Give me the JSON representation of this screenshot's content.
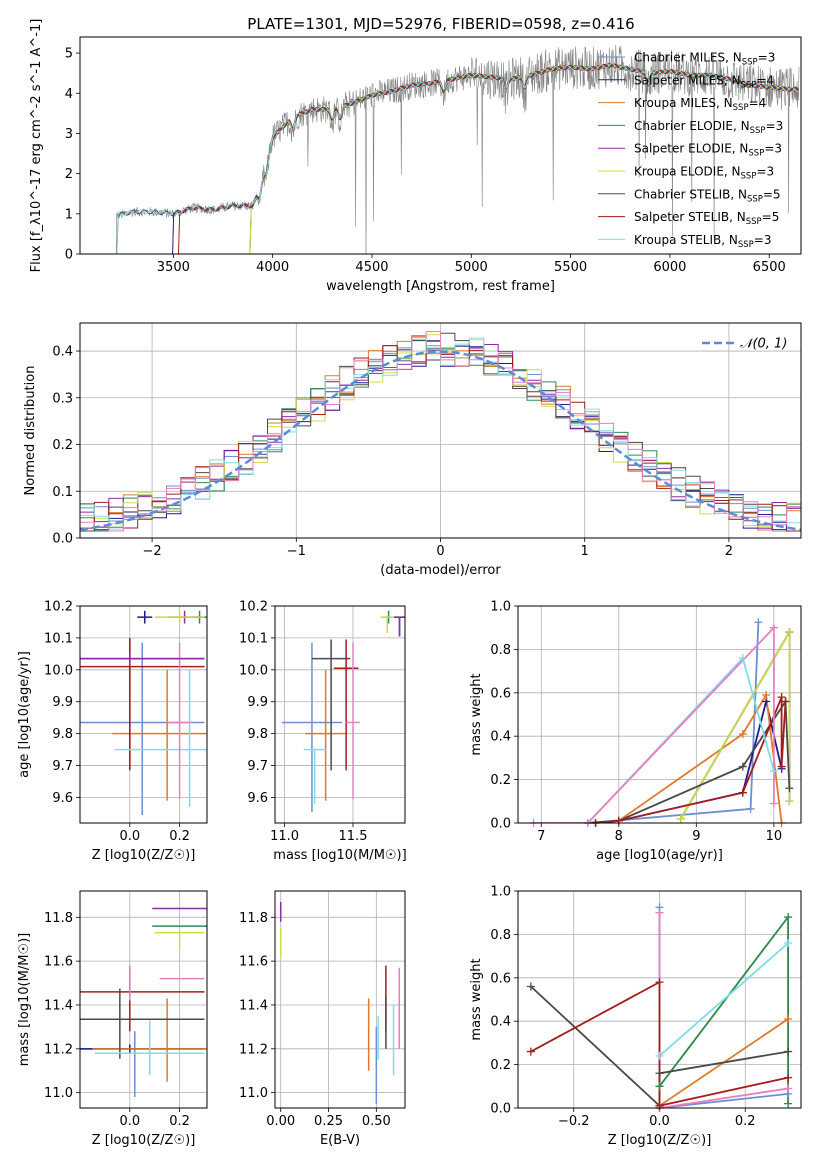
{
  "figure": {
    "title": "PLATE=1301, MJD=52976, FIBERID=0598, z=0.416"
  },
  "colors": {
    "chabrier_miles": "#6b8fd6",
    "salpeter_miles": "#1c1c8c",
    "kroupa_miles": "#e0792a",
    "chabrier_elodie": "#2e8b57",
    "salpeter_elodie": "#8e2ca8",
    "kroupa_elodie": "#cfdd42",
    "chabrier_stelib": "#4a4a4a",
    "salpeter_stelib": "#a61c1c",
    "kroupa_stelib": "#80dde6",
    "pink": "#e87fbf",
    "spectrum": "#808080",
    "normal": "#5b8bd9"
  },
  "chart_data": [
    {
      "id": "spectrum",
      "type": "line",
      "xlabel": "wavelength [Angstrom, rest frame]",
      "ylabel": "Flux [f_λ10^-17 erg cm^-2 s^-1 A^-1]",
      "xlim": [
        3030,
        6660
      ],
      "ylim": [
        0,
        5.4
      ],
      "xticks": [
        3500,
        4000,
        4500,
        5000,
        5500,
        6000,
        6500
      ],
      "yticks": [
        0,
        1,
        2,
        3,
        4,
        5
      ],
      "legend": [
        "Chabrier MILES, N_SSP=3",
        "Salpeter MILES, N_SSP=4",
        "Kroupa MILES, N_SSP=4",
        "Chabrier ELODIE, N_SSP=3",
        "Salpeter ELODIE, N_SSP=3",
        "Kroupa ELODIE, N_SSP=3",
        "Chabrier STELIB, N_SSP=5",
        "Salpeter STELIB, N_SSP=5",
        "Kroupa STELIB, N_SSP=3"
      ],
      "legend_loc": "upper-right",
      "model_start": [
        3500,
        3500,
        3530,
        3890,
        3890,
        3890,
        3220,
        3530,
        3220
      ],
      "continuum": [
        [
          3210,
          0.95
        ],
        [
          3300,
          1.05
        ],
        [
          3400,
          1.05
        ],
        [
          3500,
          1.0
        ],
        [
          3600,
          1.15
        ],
        [
          3700,
          1.1
        ],
        [
          3800,
          1.2
        ],
        [
          3900,
          1.2
        ],
        [
          3950,
          1.9
        ],
        [
          4000,
          2.9
        ],
        [
          4100,
          3.4
        ],
        [
          4200,
          3.6
        ],
        [
          4300,
          3.6
        ],
        [
          4400,
          3.75
        ],
        [
          4500,
          3.95
        ],
        [
          4600,
          4.05
        ],
        [
          4700,
          4.2
        ],
        [
          4800,
          4.25
        ],
        [
          4900,
          4.35
        ],
        [
          5000,
          4.45
        ],
        [
          5100,
          4.4
        ],
        [
          5200,
          4.35
        ],
        [
          5300,
          4.45
        ],
        [
          5400,
          4.6
        ],
        [
          5500,
          4.65
        ],
        [
          5600,
          4.6
        ],
        [
          5700,
          4.7
        ],
        [
          5800,
          4.6
        ],
        [
          5900,
          4.5
        ],
        [
          6000,
          4.55
        ],
        [
          6100,
          4.45
        ],
        [
          6200,
          4.45
        ],
        [
          6300,
          4.35
        ],
        [
          6400,
          4.2
        ],
        [
          6500,
          4.15
        ],
        [
          6600,
          4.1
        ]
      ]
    },
    {
      "id": "residuals",
      "type": "bar",
      "xlabel": "(data-model)/error",
      "ylabel": "Normed distribution",
      "xlim": [
        -2.5,
        2.5
      ],
      "ylim": [
        0,
        0.46
      ],
      "xticks": [
        -2,
        -1,
        0,
        1,
        2
      ],
      "yticks": [
        0.0,
        0.1,
        0.2,
        0.3,
        0.4
      ],
      "legend": [
        "𝒩(0, 1)"
      ],
      "legend_loc": "upper-right",
      "bin_width": 0.1,
      "normal": {
        "mu": 0,
        "sigma": 1
      }
    },
    {
      "id": "age_vs_Z",
      "type": "scatter",
      "xlabel": "Z [log10(Z/Z☉)]",
      "ylabel": "age  [log10(age/yr)]",
      "xlim": [
        -0.2,
        0.31
      ],
      "ylim": [
        9.52,
        10.2
      ],
      "xticks": [
        0.0,
        0.2
      ],
      "yticks": [
        9.6,
        9.7,
        9.8,
        9.9,
        10.0,
        10.1,
        10.2
      ],
      "points": [
        {
          "model": "chabrier_miles",
          "x": 0.05,
          "y": 9.835,
          "xerr": 0.25,
          "yerr": [
            0.29,
            0.25
          ]
        },
        {
          "model": "salpeter_miles",
          "x": 0.06,
          "y": 10.165,
          "xerr": 0.03,
          "yerr": [
            0.02,
            0.02
          ]
        },
        {
          "model": "kroupa_miles",
          "x": 0.15,
          "y": 9.8,
          "xerr": 0.22,
          "yerr": [
            0.21,
            0.2
          ]
        },
        {
          "model": "chabrier_elodie",
          "x": 0.28,
          "y": 10.165,
          "xerr": 0.03,
          "yerr": [
            0.02,
            0.02
          ]
        },
        {
          "model": "salpeter_elodie",
          "x": 0.22,
          "y": 10.165,
          "xerr": 0.07,
          "yerr": [
            0.02,
            0.02
          ]
        },
        {
          "model": "kroupa_elodie",
          "x": 0.2,
          "y": 10.165,
          "xerr": 0.1,
          "yerr": [
            0.02,
            0.02
          ]
        },
        {
          "model": "chabrier_stelib",
          "x": 0.0,
          "y": 10.035,
          "xerr": 0.3,
          "yerr": [
            0.35,
            0.06
          ]
        },
        {
          "model": "salpeter_stelib",
          "x": 0.0,
          "y": 10.01,
          "xerr": 0.3,
          "yerr": [
            0.32,
            0.09
          ]
        },
        {
          "model": "kroupa_stelib",
          "x": 0.24,
          "y": 9.75,
          "xerr": 0.3,
          "yerr": [
            0.18,
            0.25
          ]
        },
        {
          "model": "pink",
          "x": 0.2,
          "y": 9.835,
          "xerr": 0.05,
          "yerr": [
            0.24,
            0.25
          ]
        },
        {
          "model": "salpeter_elodie",
          "x": 0.0,
          "y": 10.035,
          "xerr": 0.3,
          "yerr": [
            0.02,
            0.02
          ]
        }
      ]
    },
    {
      "id": "age_vs_mass",
      "type": "scatter",
      "xlabel": "mass [log10(M/M☉)]",
      "ylabel": "",
      "xlim": [
        10.93,
        11.88
      ],
      "ylim": [
        9.52,
        10.2
      ],
      "xticks": [
        11.0,
        11.5
      ],
      "yticks": [
        9.6,
        9.7,
        9.8,
        9.9,
        10.0,
        10.1,
        10.2
      ],
      "points": [
        {
          "model": "chabrier_miles",
          "x": 11.2,
          "y": 9.835,
          "xerr": 0.22,
          "yerr": [
            0.28,
            0.25
          ]
        },
        {
          "model": "salpeter_miles",
          "x": 11.84,
          "y": 10.165,
          "xerr": 0.04,
          "yerr": [
            0.06,
            0.0
          ]
        },
        {
          "model": "kroupa_miles",
          "x": 11.3,
          "y": 9.8,
          "xerr": 0.15,
          "yerr": [
            0.21,
            0.2
          ]
        },
        {
          "model": "chabrier_elodie",
          "x": 11.76,
          "y": 10.165,
          "xerr": 0.03,
          "yerr": [
            0.02,
            0.02
          ]
        },
        {
          "model": "salpeter_elodie",
          "x": 11.84,
          "y": 10.165,
          "xerr": 0.04,
          "yerr": [
            0.06,
            0.0
          ]
        },
        {
          "model": "kroupa_elodie",
          "x": 11.75,
          "y": 10.165,
          "xerr": 0.05,
          "yerr": [
            0.05,
            0.0
          ]
        },
        {
          "model": "chabrier_stelib",
          "x": 11.34,
          "y": 10.035,
          "xerr": 0.14,
          "yerr": [
            0.35,
            0.06
          ]
        },
        {
          "model": "salpeter_stelib",
          "x": 11.45,
          "y": 10.005,
          "xerr": 0.09,
          "yerr": [
            0.32,
            0.09
          ]
        },
        {
          "model": "kroupa_stelib",
          "x": 11.22,
          "y": 9.75,
          "xerr": 0.08,
          "yerr": [
            0.17,
            0.0
          ]
        },
        {
          "model": "pink",
          "x": 11.5,
          "y": 9.835,
          "xerr": 0.05,
          "yerr": [
            0.24,
            0.25
          ]
        }
      ]
    },
    {
      "id": "weight_vs_age",
      "type": "line",
      "xlabel": "age  [log10(age/yr)]",
      "ylabel": "mass weight",
      "xlim": [
        6.7,
        10.35
      ],
      "ylim": [
        0,
        1.0
      ],
      "xticks": [
        7,
        8,
        9,
        10
      ],
      "yticks": [
        0.0,
        0.2,
        0.4,
        0.6,
        0.8,
        1.0
      ],
      "series": [
        {
          "model": "chabrier_miles",
          "x": [
            7.6,
            9.7,
            9.8
          ],
          "y": [
            0.0,
            0.065,
            0.925
          ]
        },
        {
          "model": "salpeter_miles",
          "x": [
            7.6,
            8.0,
            9.6,
            9.9,
            10.1
          ],
          "y": [
            0.0,
            0.01,
            0.14,
            0.56,
            0.25
          ]
        },
        {
          "model": "kroupa_miles",
          "x": [
            7.7,
            8.0,
            9.6,
            9.9,
            10.1
          ],
          "y": [
            0.0,
            0.01,
            0.41,
            0.59,
            0.0
          ]
        },
        {
          "model": "chabrier_elodie",
          "x": [
            8.8,
            10.2,
            10.2
          ],
          "y": [
            0.02,
            0.88,
            0.1
          ]
        },
        {
          "model": "salpeter_elodie",
          "x": [
            8.8,
            10.2,
            10.2
          ],
          "y": [
            0.02,
            0.88,
            0.1
          ]
        },
        {
          "model": "kroupa_elodie",
          "x": [
            8.8,
            10.2,
            10.2
          ],
          "y": [
            0.02,
            0.88,
            0.1
          ]
        },
        {
          "model": "chabrier_stelib",
          "x": [
            7.7,
            8.0,
            9.6,
            10.15,
            10.2
          ],
          "y": [
            0.0,
            0.01,
            0.26,
            0.56,
            0.16
          ]
        },
        {
          "model": "salpeter_stelib",
          "x": [
            7.7,
            8.0,
            9.6,
            10.1,
            10.1,
            10.15
          ],
          "y": [
            0.0,
            0.01,
            0.14,
            0.58,
            0.26,
            0.56
          ]
        },
        {
          "model": "kroupa_stelib",
          "x": [
            7.6,
            9.6,
            10.0
          ],
          "y": [
            0.0,
            0.76,
            0.24
          ]
        },
        {
          "model": "pink",
          "x": [
            6.9,
            7.6,
            10.0,
            10.0
          ],
          "y": [
            0.0,
            0.0,
            0.9,
            0.09
          ]
        }
      ]
    },
    {
      "id": "mass_vs_Z",
      "type": "scatter",
      "xlabel": "Z [log10(Z/Z☉)]",
      "ylabel": "mass [log10(M/M☉)]",
      "xlim": [
        -0.2,
        0.31
      ],
      "ylim": [
        10.93,
        11.92
      ],
      "xticks": [
        0.0,
        0.2
      ],
      "yticks": [
        11.0,
        11.2,
        11.4,
        11.6,
        11.8
      ],
      "points": [
        {
          "model": "chabrier_miles",
          "x": 0.02,
          "y": 11.2,
          "xerr": 0.28,
          "yerr": [
            0.22,
            0.08
          ]
        },
        {
          "model": "salpeter_miles",
          "x": 0.0,
          "y": 11.2,
          "xerr": 0.3,
          "yerr": [
            0.02,
            0.02
          ]
        },
        {
          "model": "kroupa_miles",
          "x": 0.15,
          "y": 11.2,
          "xerr": 0.3,
          "yerr": [
            0.15,
            0.23
          ]
        },
        {
          "model": "chabrier_elodie",
          "x": 0.2,
          "y": 11.76,
          "xerr": 0.11,
          "yerr": [
            0.0,
            0.0
          ]
        },
        {
          "model": "salpeter_elodie",
          "x": 0.2,
          "y": 11.84,
          "xerr": 0.11,
          "yerr": [
            0.0,
            0.0
          ]
        },
        {
          "model": "kroupa_elodie",
          "x": 0.2,
          "y": 11.73,
          "xerr": 0.1,
          "yerr": [
            0.08,
            0.0
          ]
        },
        {
          "model": "chabrier_stelib",
          "x": -0.04,
          "y": 11.335,
          "xerr": 0.34,
          "yerr": [
            0.18,
            0.14
          ]
        },
        {
          "model": "salpeter_stelib",
          "x": 0.0,
          "y": 11.46,
          "xerr": 0.3,
          "yerr": [
            0.18,
            0.12
          ]
        },
        {
          "model": "kroupa_stelib",
          "x": 0.08,
          "y": 11.18,
          "xerr": 0.22,
          "yerr": [
            0.1,
            0.15
          ]
        },
        {
          "model": "pink",
          "x": 0.21,
          "y": 11.52,
          "xerr": 0.09,
          "yerr": [
            0.0,
            0.0
          ]
        },
        {
          "model": "pink",
          "x": 0.0,
          "y": 11.52,
          "xerr": 0.0,
          "yerr": [
            0.1,
            0.06
          ]
        }
      ]
    },
    {
      "id": "mass_vs_ebv",
      "type": "scatter",
      "xlabel": "E(B-V)",
      "ylabel": "",
      "xlim": [
        -0.03,
        0.65
      ],
      "ylim": [
        10.93,
        11.92
      ],
      "xticks": [
        0.0,
        0.25,
        0.5
      ],
      "yticks": [
        11.0,
        11.2,
        11.4,
        11.6,
        11.8
      ],
      "points": [
        {
          "model": "salpeter_elodie",
          "x": 0.0,
          "y": 11.84,
          "xerr": 0.0,
          "yerr": [
            0.06,
            0.03
          ]
        },
        {
          "model": "kroupa_elodie",
          "x": 0.0,
          "y": 11.7,
          "xerr": 0.0,
          "yerr": [
            0.08,
            0.05
          ]
        },
        {
          "model": "chabrier_miles",
          "x": 0.5,
          "y": 11.2,
          "xerr": 0.0,
          "yerr": [
            0.25,
            0.1
          ]
        },
        {
          "model": "kroupa_miles",
          "x": 0.46,
          "y": 11.2,
          "xerr": 0.0,
          "yerr": [
            0.1,
            0.23
          ]
        },
        {
          "model": "salpeter_stelib",
          "x": 0.55,
          "y": 11.46,
          "xerr": 0.0,
          "yerr": [
            0.18,
            0.12
          ]
        },
        {
          "model": "chabrier_stelib",
          "x": 0.55,
          "y": 11.34,
          "xerr": 0.0,
          "yerr": [
            0.14,
            0.1
          ]
        },
        {
          "model": "kroupa_stelib",
          "x": 0.59,
          "y": 11.2,
          "xerr": 0.0,
          "yerr": [
            0.12,
            0.2
          ]
        },
        {
          "model": "pink",
          "x": 0.62,
          "y": 11.45,
          "xerr": 0.0,
          "yerr": [
            0.25,
            0.12
          ]
        },
        {
          "model": "kroupa_stelib",
          "x": 0.51,
          "y": 11.25,
          "xerr": 0.0,
          "yerr": [
            0.1,
            0.1
          ]
        }
      ]
    },
    {
      "id": "weight_vs_Z",
      "type": "line",
      "xlabel": "Z [log10(Z/Z☉)]",
      "ylabel": "mass weight",
      "xlim": [
        -0.33,
        0.33
      ],
      "ylim": [
        0,
        1.0
      ],
      "xticks": [
        -0.2,
        0.0,
        0.2
      ],
      "yticks": [
        0.0,
        0.2,
        0.4,
        0.6,
        0.8,
        1.0
      ],
      "series": [
        {
          "model": "chabrier_miles",
          "x": [
            0.0,
            0.0,
            0.3
          ],
          "y": [
            0.925,
            0.0,
            0.065
          ]
        },
        {
          "model": "pink",
          "x": [
            0.0,
            0.0,
            0.3
          ],
          "y": [
            0.9,
            0.0,
            0.09
          ]
        },
        {
          "model": "kroupa_miles",
          "x": [
            0.0,
            0.0,
            0.3
          ],
          "y": [
            0.0,
            0.01,
            0.41
          ]
        },
        {
          "model": "kroupa_elodie",
          "x": [
            0.0,
            0.3,
            0.3
          ],
          "y": [
            0.1,
            0.88,
            0.02
          ]
        },
        {
          "model": "chabrier_elodie",
          "x": [
            0.0,
            0.3,
            0.3
          ],
          "y": [
            0.1,
            0.88,
            0.02
          ]
        },
        {
          "model": "kroupa_stelib",
          "x": [
            0.0,
            0.3
          ],
          "y": [
            0.24,
            0.76
          ]
        },
        {
          "model": "chabrier_stelib",
          "x": [
            -0.3,
            0.0,
            0.0,
            0.3
          ],
          "y": [
            0.56,
            0.01,
            0.16,
            0.26
          ]
        },
        {
          "model": "salpeter_stelib",
          "x": [
            -0.3,
            0.0,
            0.0,
            0.3
          ],
          "y": [
            0.26,
            0.58,
            0.01,
            0.14
          ]
        }
      ]
    }
  ]
}
